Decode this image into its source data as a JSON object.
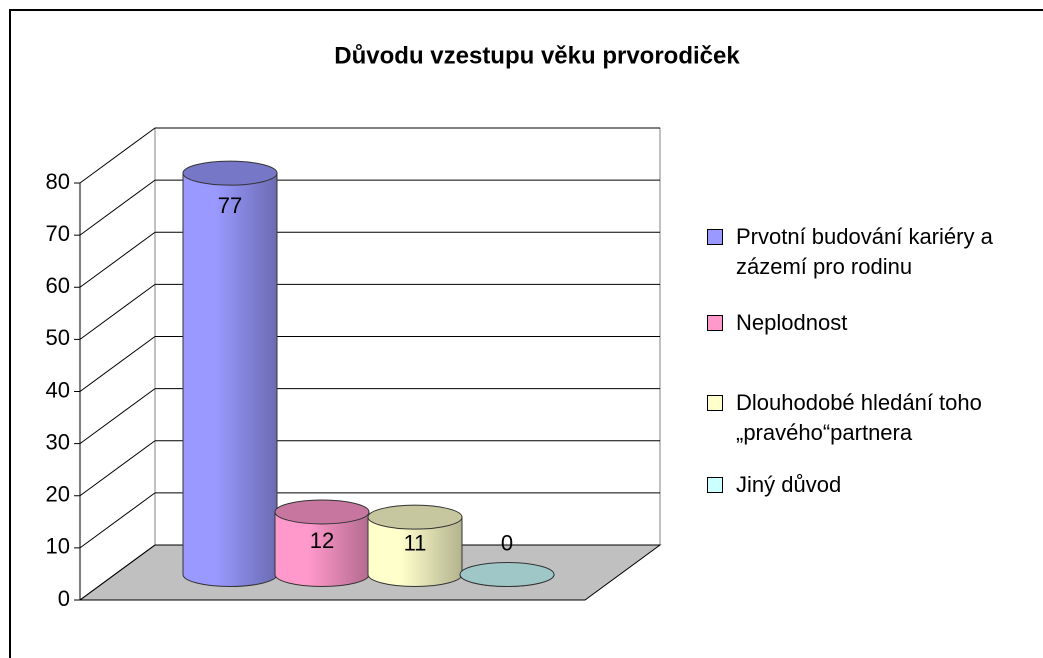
{
  "chart_data": {
    "type": "cylinder3d",
    "title": "Důvodu vzestupu věku prvorodiček",
    "series": [
      {
        "name": "Prvotní budování kariéry a zázemí pro rodinu",
        "color": "#9999ff",
        "values": [
          77
        ]
      },
      {
        "name": "Neplodnost",
        "color": "#ff99cc",
        "values": [
          12
        ]
      },
      {
        "name": "Dlouhodobé hledání toho „pravého“partnera",
        "color": "#ffffcc",
        "values": [
          11
        ]
      },
      {
        "name": "Jiný důvod",
        "color": "#ccffff",
        "values": [
          0
        ]
      }
    ],
    "ylim": [
      0,
      80
    ],
    "yticks": [
      0,
      10,
      20,
      30,
      40,
      50,
      60,
      70,
      80
    ],
    "grid": true,
    "legend": "right"
  }
}
